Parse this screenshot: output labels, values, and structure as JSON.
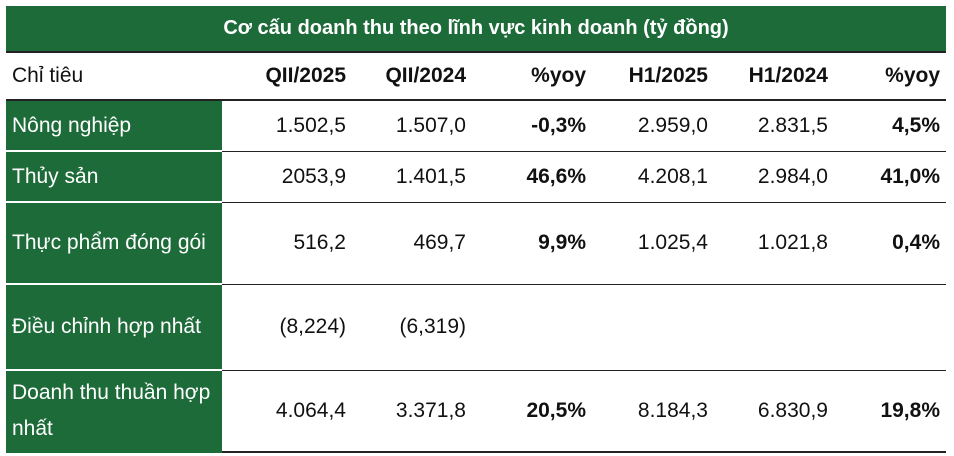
{
  "title": "Cơ cấu doanh thu theo lĩnh vực kinh doanh (tỷ đồng)",
  "columns": [
    "Chỉ tiêu",
    "QII/2025",
    "QII/2024",
    "%yoy",
    "H1/2025",
    "H1/2024",
    "%yoy"
  ],
  "rows": [
    {
      "label": "Nông nghiệp",
      "q2_2025": "1.502,5",
      "q2_2024": "1.507,0",
      "yoy_q": "-0,3%",
      "h1_2025": "2.959,0",
      "h1_2024": "2.831,5",
      "yoy_h1": "4,5%"
    },
    {
      "label": "Thủy sản",
      "q2_2025": "2053,9",
      "q2_2024": "1.401,5",
      "yoy_q": "46,6%",
      "h1_2025": "4.208,1",
      "h1_2024": "2.984,0",
      "yoy_h1": "41,0%"
    },
    {
      "label": "Thực phẩm đóng gói",
      "q2_2025": "516,2",
      "q2_2024": "469,7",
      "yoy_q": "9,9%",
      "h1_2025": "1.025,4",
      "h1_2024": "1.021,8",
      "yoy_h1": "0,4%"
    },
    {
      "label": "Điều chỉnh hợp nhất",
      "q2_2025": "(8,224)",
      "q2_2024": "(6,319)",
      "yoy_q": "",
      "h1_2025": "",
      "h1_2024": "",
      "yoy_h1": ""
    },
    {
      "label": "Doanh thu thuần hợp nhất",
      "q2_2025": "4.064,4",
      "q2_2024": "3.371,8",
      "yoy_q": "20,5%",
      "h1_2025": "8.184,3",
      "h1_2024": "6.830,9",
      "yoy_h1": "19,8%"
    }
  ],
  "colors": {
    "header_green": "#1e6b3a",
    "text": "#111111"
  }
}
